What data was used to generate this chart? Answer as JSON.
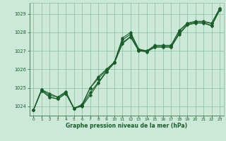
{
  "background_color": "#cce8d8",
  "grid_color": "#88bb99",
  "line_color": "#1a5c2a",
  "title": "Graphe pression niveau de la mer (hPa)",
  "xlim": [
    -0.5,
    23.5
  ],
  "ylim": [
    1023.5,
    1029.6
  ],
  "yticks": [
    1024,
    1025,
    1026,
    1027,
    1028,
    1029
  ],
  "xticks": [
    0,
    1,
    2,
    3,
    4,
    5,
    6,
    7,
    8,
    9,
    10,
    11,
    12,
    13,
    14,
    15,
    16,
    17,
    18,
    19,
    20,
    21,
    22,
    23
  ],
  "series": [
    [
      1023.8,
      1024.9,
      1024.7,
      1024.5,
      1024.8,
      1023.9,
      1024.1,
      1025.0,
      1025.6,
      1026.0,
      1026.4,
      1027.7,
      1028.0,
      1027.1,
      1027.0,
      1027.3,
      1027.3,
      1027.3,
      1028.1,
      1028.5,
      1028.6,
      1028.6,
      1028.5,
      1029.3
    ],
    [
      1023.8,
      1024.85,
      1024.5,
      1024.4,
      1024.7,
      1023.9,
      1024.0,
      1024.6,
      1025.25,
      1025.85,
      1026.35,
      1027.4,
      1027.75,
      1027.0,
      1026.95,
      1027.2,
      1027.2,
      1027.2,
      1027.9,
      1028.4,
      1028.5,
      1028.5,
      1028.35,
      1029.2
    ],
    [
      1023.8,
      1024.85,
      1024.5,
      1024.4,
      1024.7,
      1023.88,
      1024.05,
      1024.75,
      1025.3,
      1025.88,
      1026.35,
      1027.45,
      1027.78,
      1027.02,
      1026.97,
      1027.22,
      1027.22,
      1027.22,
      1027.95,
      1028.42,
      1028.52,
      1028.52,
      1028.38,
      1029.22
    ],
    [
      1023.8,
      1024.9,
      1024.6,
      1024.5,
      1024.75,
      1023.9,
      1024.05,
      1025.0,
      1025.5,
      1025.95,
      1026.4,
      1027.6,
      1027.9,
      1027.05,
      1027.0,
      1027.28,
      1027.28,
      1027.28,
      1028.08,
      1028.48,
      1028.58,
      1028.58,
      1028.48,
      1029.28
    ]
  ]
}
